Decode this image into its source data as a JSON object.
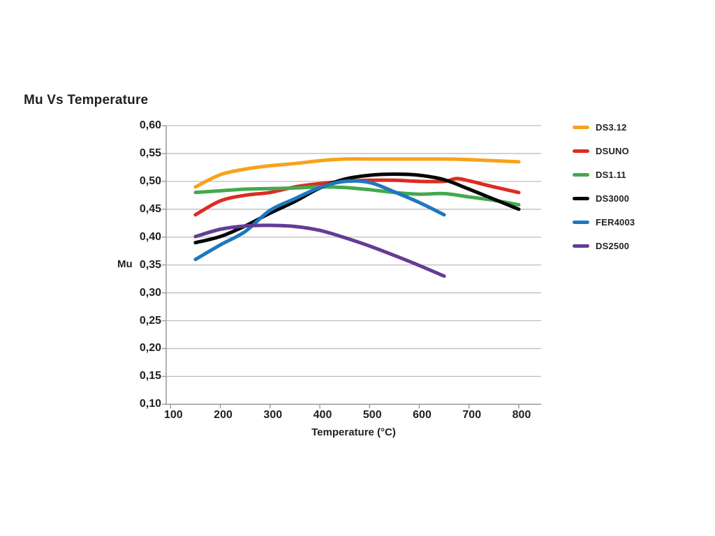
{
  "page": {
    "background_color": "#FFFFFF",
    "text_color": "#231F20",
    "gridline_color": "#BDBDBD",
    "axis_color": "#9A9A9A"
  },
  "chart_data": {
    "type": "line",
    "title": "Mu Vs Temperature",
    "xlabel": "Temperature (°C)",
    "ylabel": "Mu",
    "xlim": [
      100,
      845
    ],
    "ylim": [
      0.1,
      0.6
    ],
    "grid": "horizontal-only",
    "legend_position": "right",
    "x_ticks": [
      100,
      200,
      300,
      400,
      500,
      600,
      700,
      800
    ],
    "x_tick_labels": [
      "100",
      "200",
      "300",
      "400",
      "500",
      "600",
      "700",
      "800"
    ],
    "y_ticks": [
      0.6,
      0.55,
      0.5,
      0.45,
      0.4,
      0.35,
      0.3,
      0.25,
      0.2,
      0.15,
      0.1
    ],
    "y_tick_labels": [
      "0,60",
      "0,55",
      "0,50",
      "0,45",
      "0,40",
      "0,35",
      "0,30",
      "0,25",
      "0,20",
      "0,15",
      "0,10"
    ],
    "series": [
      {
        "name": "DS3.12",
        "color": "#F7A21B",
        "x": [
          150,
          200,
          250,
          300,
          350,
          400,
          450,
          500,
          550,
          600,
          650,
          700,
          750,
          800
        ],
        "y": [
          0.49,
          0.512,
          0.522,
          0.528,
          0.532,
          0.537,
          0.54,
          0.54,
          0.54,
          0.54,
          0.54,
          0.539,
          0.537,
          0.535
        ]
      },
      {
        "name": "DSUNO",
        "color": "#DE2B20",
        "x": [
          150,
          200,
          250,
          300,
          350,
          400,
          450,
          500,
          550,
          600,
          650,
          675,
          700,
          750,
          800
        ],
        "y": [
          0.44,
          0.465,
          0.475,
          0.48,
          0.49,
          0.496,
          0.5,
          0.502,
          0.502,
          0.5,
          0.5,
          0.505,
          0.501,
          0.49,
          0.48
        ]
      },
      {
        "name": "DS1.11",
        "color": "#44A94E",
        "x": [
          150,
          200,
          250,
          300,
          350,
          400,
          450,
          500,
          550,
          600,
          650,
          700,
          750,
          800
        ],
        "y": [
          0.48,
          0.483,
          0.486,
          0.487,
          0.488,
          0.49,
          0.489,
          0.485,
          0.48,
          0.477,
          0.478,
          0.472,
          0.466,
          0.458
        ]
      },
      {
        "name": "DS3000",
        "color": "#060606",
        "x": [
          150,
          200,
          250,
          300,
          350,
          400,
          450,
          500,
          550,
          600,
          650,
          700,
          750,
          800
        ],
        "y": [
          0.39,
          0.401,
          0.42,
          0.443,
          0.464,
          0.488,
          0.504,
          0.511,
          0.513,
          0.511,
          0.503,
          0.486,
          0.468,
          0.45
        ]
      },
      {
        "name": "FER4003",
        "color": "#1E78BE",
        "x": [
          150,
          200,
          250,
          300,
          350,
          400,
          450,
          500,
          550,
          600,
          650
        ],
        "y": [
          0.36,
          0.386,
          0.41,
          0.448,
          0.469,
          0.489,
          0.5,
          0.498,
          0.481,
          0.462,
          0.44
        ]
      },
      {
        "name": "DS2500",
        "color": "#643C94",
        "x": [
          150,
          200,
          250,
          300,
          350,
          400,
          450,
          500,
          550,
          600,
          650
        ],
        "y": [
          0.401,
          0.414,
          0.42,
          0.421,
          0.419,
          0.412,
          0.399,
          0.384,
          0.367,
          0.349,
          0.33
        ]
      }
    ]
  }
}
